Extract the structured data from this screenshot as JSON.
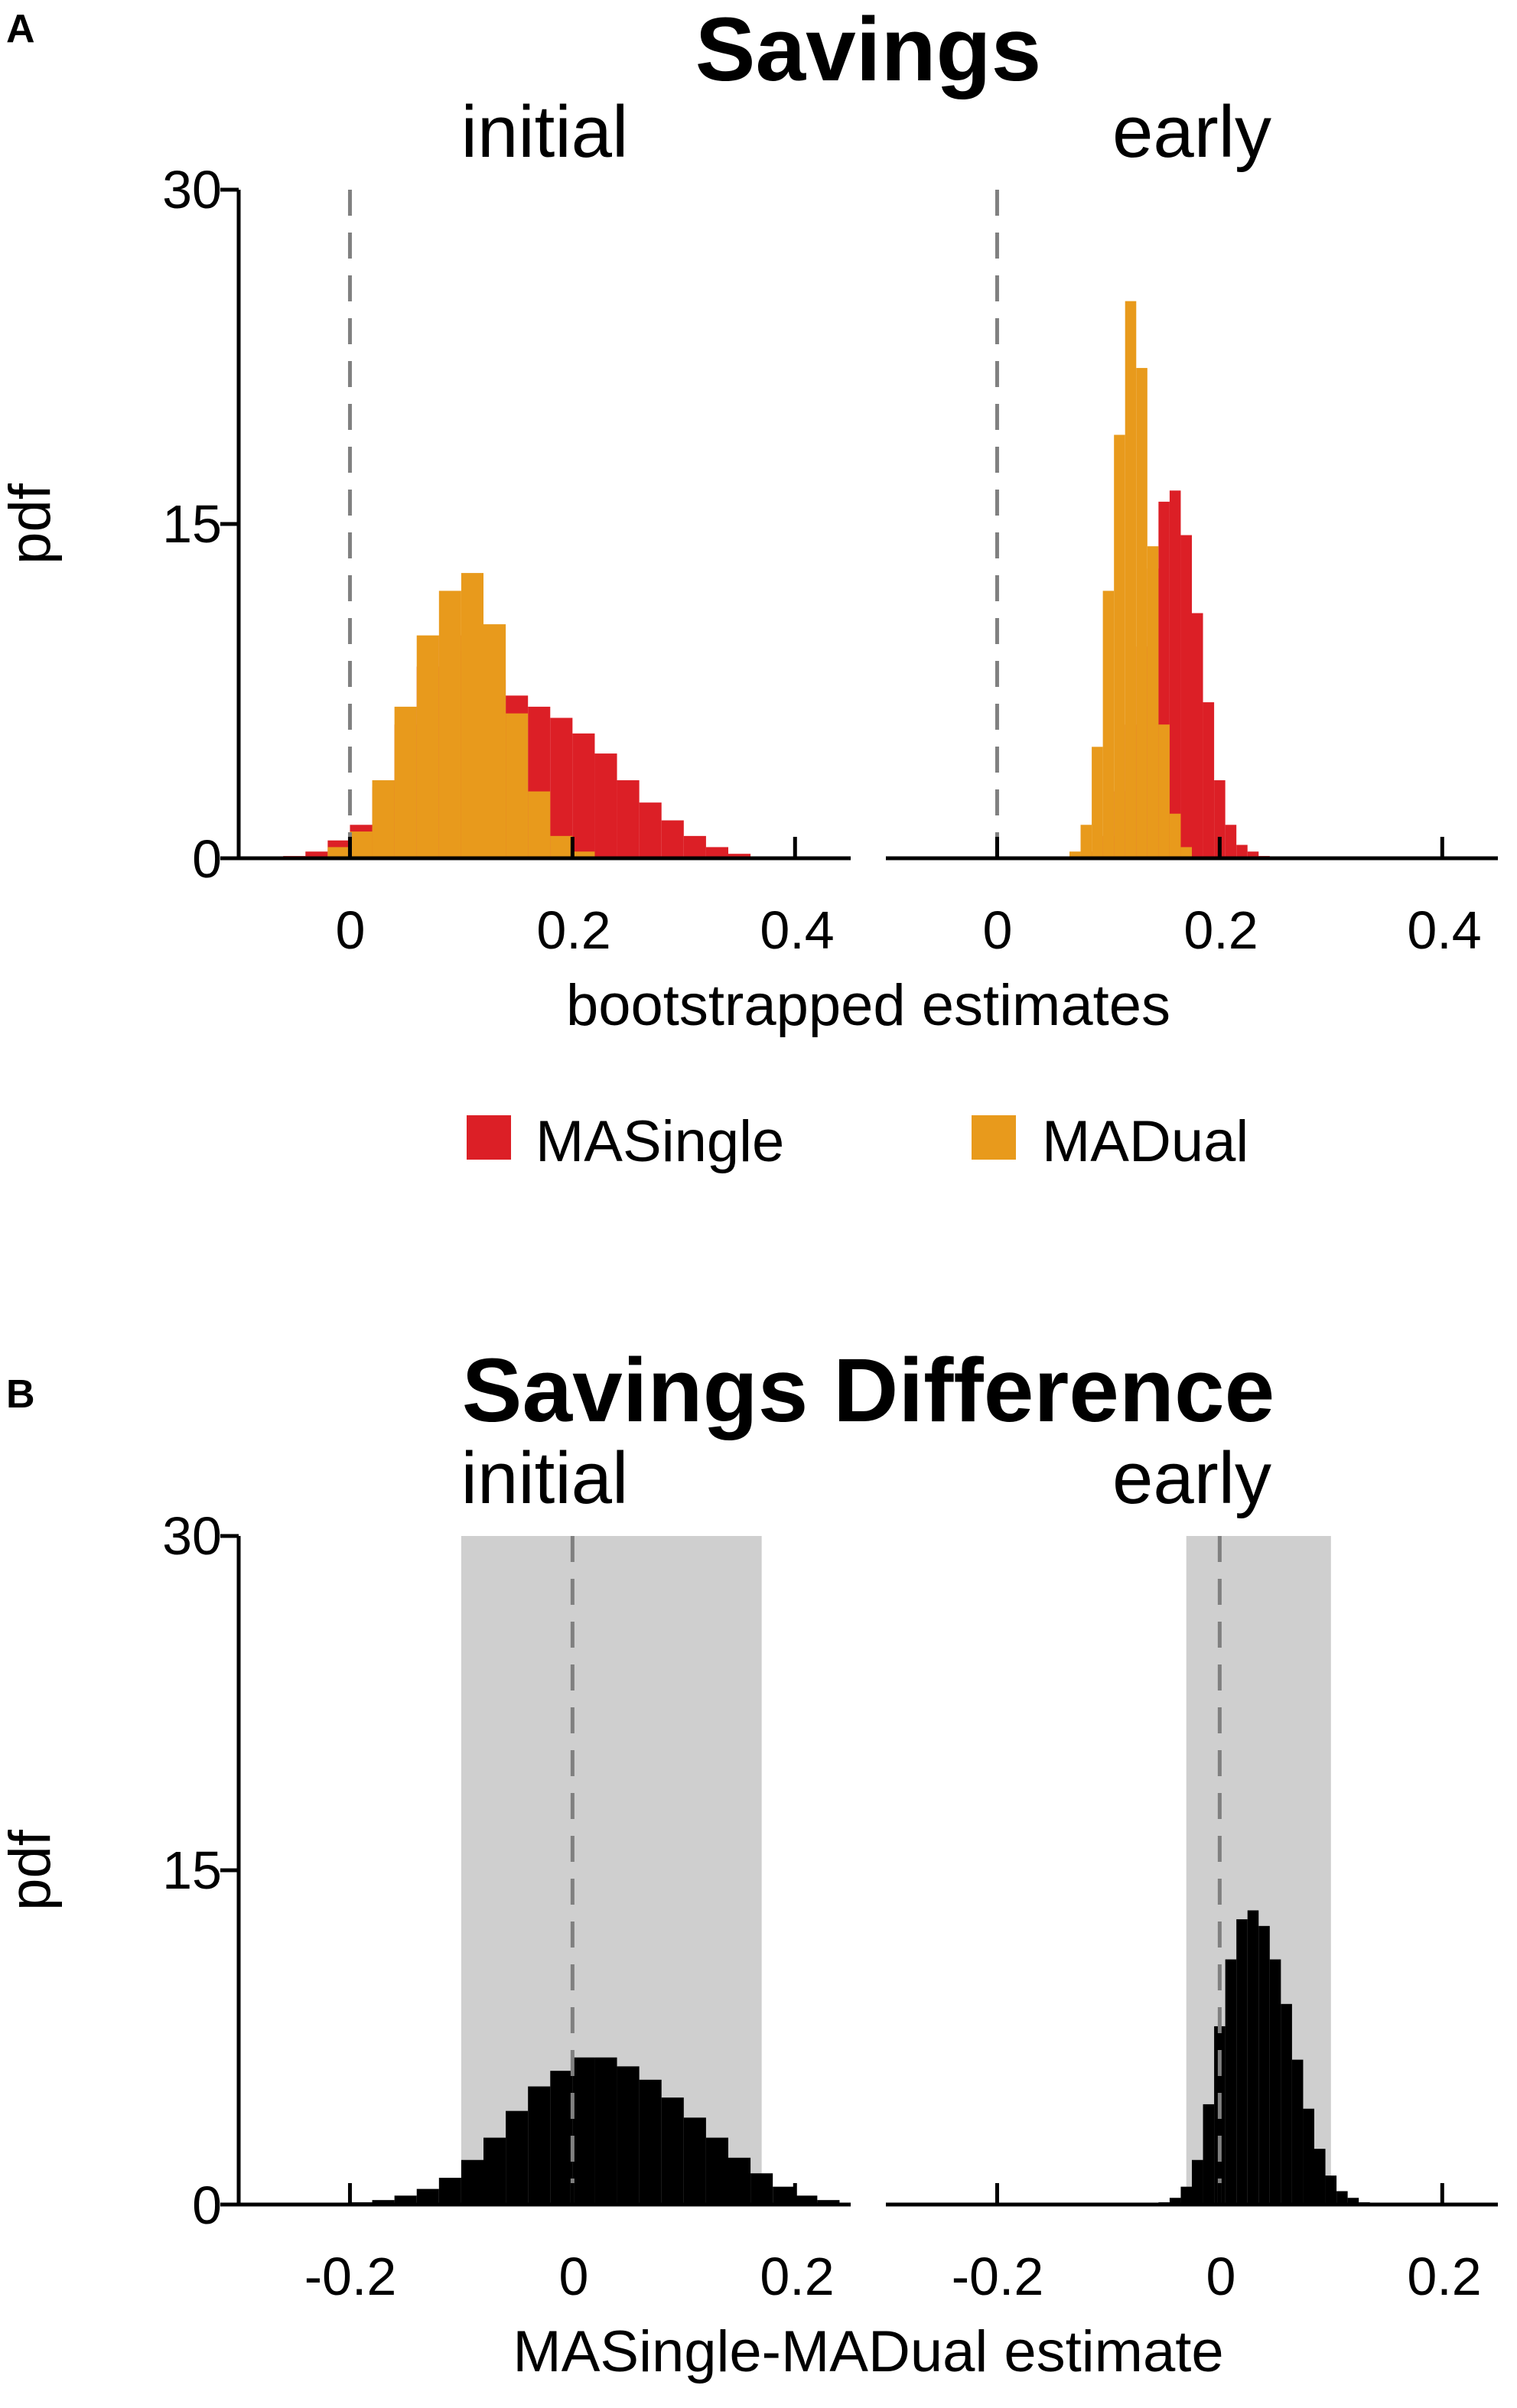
{
  "colors": {
    "single": "#dc1f26",
    "dual": "#e89a1c",
    "difference": "#000000",
    "ci_band": "#cfcfcf",
    "zero_line": "#808080"
  },
  "panel_a": {
    "letter": "A",
    "title": "Savings",
    "ylabel": "pdf",
    "xlabel": "bootstrapped estimates",
    "yticks": [
      "30",
      "15",
      "0"
    ],
    "legend": [
      {
        "label": "MASingle",
        "color": "#dc1f26"
      },
      {
        "label": "MADual",
        "color": "#e89a1c"
      }
    ],
    "subplots": [
      {
        "title": "initial",
        "xticks": [
          "0",
          "0.2",
          "0.4"
        ]
      },
      {
        "title": "early",
        "xticks": [
          "0",
          "0.2",
          "0.4"
        ]
      }
    ]
  },
  "panel_b": {
    "letter": "B",
    "title": "Savings Difference",
    "ylabel": "pdf",
    "xlabel": "MASingle-MADual estimate",
    "yticks": [
      "30",
      "15",
      "0"
    ],
    "subplots": [
      {
        "title": "initial",
        "xticks": [
          "-0.2",
          "0",
          "0.2"
        ]
      },
      {
        "title": "early",
        "xticks": [
          "-0.2",
          "0",
          "0.2"
        ]
      }
    ]
  },
  "chart_data": [
    {
      "type": "histogram",
      "title": "Savings",
      "subtitle": "initial",
      "xlabel": "bootstrapped estimates",
      "ylabel": "pdf",
      "xlim": [
        -0.1,
        0.45
      ],
      "ylim": [
        0,
        30
      ],
      "xticks": [
        0,
        0.2,
        0.4
      ],
      "yticks": [
        0,
        15,
        30
      ],
      "reference_line_x": 0,
      "series": [
        {
          "name": "MASingle",
          "color": "#dc1f26",
          "x": [
            -0.05,
            -0.03,
            -0.01,
            0.01,
            0.03,
            0.05,
            0.07,
            0.09,
            0.11,
            0.13,
            0.15,
            0.17,
            0.19,
            0.21,
            0.23,
            0.25,
            0.27,
            0.29,
            0.31,
            0.33,
            0.35
          ],
          "values": [
            0.1,
            0.3,
            0.8,
            1.5,
            3.2,
            6.0,
            8.6,
            10.0,
            9.3,
            8.0,
            7.3,
            6.8,
            6.3,
            5.6,
            4.7,
            3.5,
            2.5,
            1.7,
            1.0,
            0.5,
            0.2
          ]
        },
        {
          "name": "MADual",
          "color": "#e89a1c",
          "x": [
            -0.01,
            0.01,
            0.03,
            0.05,
            0.07,
            0.09,
            0.11,
            0.13,
            0.15,
            0.17,
            0.19,
            0.21
          ],
          "values": [
            0.5,
            1.2,
            3.5,
            6.8,
            10.0,
            12.0,
            12.8,
            10.5,
            6.5,
            3.0,
            1.0,
            0.3
          ]
        }
      ]
    },
    {
      "type": "histogram",
      "title": "Savings",
      "subtitle": "early",
      "xlabel": "bootstrapped estimates",
      "ylabel": "pdf",
      "xlim": [
        -0.1,
        0.45
      ],
      "ylim": [
        0,
        30
      ],
      "xticks": [
        0,
        0.2,
        0.4
      ],
      "yticks": [
        0,
        15,
        30
      ],
      "reference_line_x": 0,
      "series": [
        {
          "name": "MASingle",
          "color": "#dc1f26",
          "x": [
            0.09,
            0.1,
            0.11,
            0.12,
            0.13,
            0.14,
            0.15,
            0.16,
            0.17,
            0.18,
            0.19,
            0.2,
            0.21,
            0.22,
            0.23,
            0.24
          ],
          "values": [
            0.3,
            1.0,
            3.0,
            6.0,
            9.5,
            13.0,
            16.0,
            16.5,
            14.5,
            11.0,
            7.0,
            3.5,
            1.5,
            0.6,
            0.3,
            0.1
          ]
        },
        {
          "name": "MADual",
          "color": "#e89a1c",
          "x": [
            0.07,
            0.08,
            0.09,
            0.1,
            0.11,
            0.12,
            0.13,
            0.14,
            0.15,
            0.16,
            0.17
          ],
          "values": [
            0.3,
            1.5,
            5.0,
            12.0,
            19.0,
            25.0,
            22.0,
            14.0,
            6.0,
            2.0,
            0.5
          ]
        }
      ]
    },
    {
      "type": "histogram",
      "title": "Savings Difference",
      "subtitle": "initial",
      "xlabel": "MASingle-MADual estimate",
      "ylabel": "pdf",
      "xlim": [
        -0.3,
        0.25
      ],
      "ylim": [
        0,
        30
      ],
      "xticks": [
        -0.2,
        0,
        0.2
      ],
      "yticks": [
        0,
        15,
        30
      ],
      "reference_line_x": 0,
      "ci_band": [
        -0.1,
        0.17
      ],
      "series": [
        {
          "name": "MASingle-MADual",
          "color": "#000000",
          "x": [
            -0.19,
            -0.17,
            -0.15,
            -0.13,
            -0.11,
            -0.09,
            -0.07,
            -0.05,
            -0.03,
            -0.01,
            0.01,
            0.03,
            0.05,
            0.07,
            0.09,
            0.11,
            0.13,
            0.15,
            0.17,
            0.19,
            0.21,
            0.23
          ],
          "values": [
            0.1,
            0.2,
            0.4,
            0.7,
            1.2,
            2.0,
            3.0,
            4.2,
            5.3,
            6.0,
            6.6,
            6.6,
            6.2,
            5.6,
            4.8,
            3.9,
            3.0,
            2.1,
            1.4,
            0.8,
            0.4,
            0.2
          ]
        }
      ]
    },
    {
      "type": "histogram",
      "title": "Savings Difference",
      "subtitle": "early",
      "xlabel": "MASingle-MADual estimate",
      "ylabel": "pdf",
      "xlim": [
        -0.3,
        0.25
      ],
      "ylim": [
        0,
        30
      ],
      "xticks": [
        -0.2,
        0,
        0.2
      ],
      "yticks": [
        0,
        15,
        30
      ],
      "reference_line_x": 0,
      "ci_band": [
        -0.03,
        0.1
      ],
      "series": [
        {
          "name": "MASingle-MADual",
          "color": "#000000",
          "x": [
            -0.05,
            -0.04,
            -0.03,
            -0.02,
            -0.01,
            0.0,
            0.01,
            0.02,
            0.03,
            0.04,
            0.05,
            0.06,
            0.07,
            0.08,
            0.09,
            0.1,
            0.11,
            0.12,
            0.13
          ],
          "values": [
            0.1,
            0.3,
            0.8,
            2.0,
            4.5,
            8.0,
            11.0,
            12.8,
            13.2,
            12.5,
            11.0,
            9.0,
            6.5,
            4.3,
            2.5,
            1.3,
            0.6,
            0.3,
            0.1
          ]
        }
      ]
    }
  ]
}
